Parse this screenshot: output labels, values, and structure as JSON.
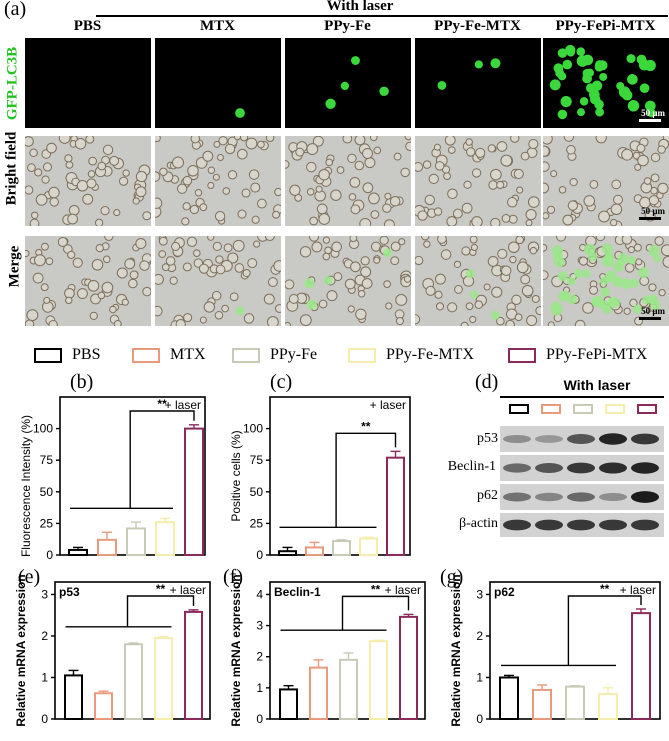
{
  "panel_a": {
    "label": "(a)",
    "laser_header": "With laser",
    "columns": [
      "PBS",
      "MTX",
      "PPy-Fe",
      "PPy-Fe-MTX",
      "PPy-FePi-MTX"
    ],
    "rows": [
      "GFP-LC3B",
      "Bright field",
      "Merge"
    ],
    "scale_bar": "50 μm"
  },
  "legend": {
    "items": [
      {
        "name": "PBS",
        "color": "#000000"
      },
      {
        "name": "MTX",
        "color": "#e79a7c"
      },
      {
        "name": "PPy-Fe",
        "color": "#c8c9b6"
      },
      {
        "name": "PPy-Fe-MTX",
        "color": "#f6ecac"
      },
      {
        "name": "PPy-FePi-MTX",
        "color": "#8b2a5a"
      }
    ]
  },
  "labels": {
    "b": "(b)",
    "c": "(c)",
    "d": "(d)",
    "e": "(e)",
    "f": "(f)",
    "g": "(g)"
  },
  "panel_d": {
    "header": "With laser",
    "proteins": [
      "p53",
      "Beclin-1",
      "p62",
      "β-actin"
    ]
  },
  "chart_data": [
    {
      "id": "b",
      "type": "bar",
      "categories": [
        "PBS",
        "MTX",
        "PPy-Fe",
        "PPy-Fe-MTX",
        "PPy-FePi-MTX"
      ],
      "values": [
        4,
        12,
        21,
        26,
        100
      ],
      "errors": [
        2,
        6,
        5,
        3,
        3
      ],
      "ylabel": "Fluorescence Intensity (%)",
      "ylim": [
        0,
        125
      ],
      "yticks": [
        "0",
        "25",
        "50",
        "75",
        "100"
      ],
      "yticks_num": [
        0,
        25,
        50,
        75,
        100
      ],
      "annotation": "+ laser",
      "significance": "**"
    },
    {
      "id": "c",
      "type": "bar",
      "categories": [
        "PBS",
        "MTX",
        "PPy-Fe",
        "PPy-Fe-MTX",
        "PPy-FePi-MTX"
      ],
      "values": [
        3,
        6,
        11,
        13,
        77
      ],
      "errors": [
        3,
        4,
        1,
        1,
        5
      ],
      "ylabel": "Positive cells (%)",
      "ylim": [
        0,
        125
      ],
      "yticks": [
        "0",
        "25",
        "50",
        "75",
        "100"
      ],
      "yticks_num": [
        0,
        25,
        50,
        75,
        100
      ],
      "annotation": "+ laser",
      "significance": "**"
    },
    {
      "id": "e",
      "type": "bar",
      "categories": [
        "PBS",
        "MTX",
        "PPy-Fe",
        "PPy-Fe-MTX",
        "PPy-FePi-MTX"
      ],
      "values": [
        1.05,
        0.62,
        1.8,
        1.95,
        2.58
      ],
      "errors": [
        0.12,
        0.05,
        0.03,
        0.03,
        0.05
      ],
      "ylabel": "Relative mRNA expression",
      "ylim": [
        0,
        3.3
      ],
      "yticks": [
        "0",
        "1",
        "2",
        "3"
      ],
      "yticks_num": [
        0,
        1,
        2,
        3
      ],
      "inner_label": "p53",
      "annotation": "+ laser",
      "significance": "**"
    },
    {
      "id": "f",
      "type": "bar",
      "categories": [
        "PBS",
        "MTX",
        "PPy-Fe",
        "PPy-Fe-MTX",
        "PPy-FePi-MTX"
      ],
      "values": [
        0.95,
        1.65,
        1.9,
        2.5,
        3.28
      ],
      "errors": [
        0.12,
        0.25,
        0.22,
        0.03,
        0.08
      ],
      "ylabel": "Relative mRNA expression",
      "ylim": [
        0,
        4.4
      ],
      "yticks": [
        "0",
        "1",
        "2",
        "3",
        "4"
      ],
      "yticks_num": [
        0,
        1,
        2,
        3,
        4
      ],
      "inner_label": "Beclin-1",
      "annotation": "+ laser",
      "significance": "**"
    },
    {
      "id": "g",
      "type": "bar",
      "categories": [
        "PBS",
        "MTX",
        "PPy-Fe",
        "PPy-Fe-MTX",
        "PPy-FePi-MTX"
      ],
      "values": [
        1.0,
        0.7,
        0.78,
        0.6,
        2.55
      ],
      "errors": [
        0.05,
        0.12,
        0.02,
        0.15,
        0.1
      ],
      "ylabel": "Relative mRNA expression",
      "ylim": [
        0,
        3.3
      ],
      "yticks": [
        "0",
        "1",
        "2",
        "3"
      ],
      "yticks_num": [
        0,
        1,
        2,
        3
      ],
      "inner_label": "p62",
      "annotation": "+ laser",
      "significance": "**"
    }
  ]
}
